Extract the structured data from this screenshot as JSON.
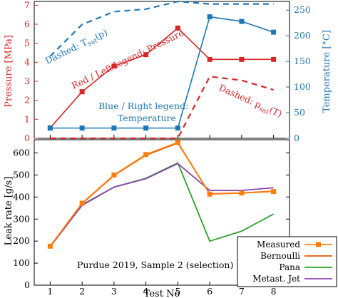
{
  "chart_data": [
    {
      "type": "line",
      "xlabel": "",
      "ylabel": "Pressure [MPa]",
      "y2label": "Temperature [°C]",
      "x": [
        1,
        2,
        3,
        4,
        5,
        6,
        7,
        8
      ],
      "xlim": [
        0.5,
        8.5
      ],
      "ylim": [
        0,
        7.2
      ],
      "y2lim": [
        0,
        267
      ],
      "yticks": [
        0,
        1,
        2,
        3,
        4,
        5,
        6,
        7
      ],
      "y2ticks": [
        0,
        50,
        100,
        150,
        200,
        250
      ],
      "series": [
        {
          "axis": "left",
          "style": "solid-square",
          "color": "#d62728",
          "values": [
            0.55,
            2.45,
            3.8,
            4.4,
            5.8,
            4.15,
            4.15,
            4.15
          ]
        },
        {
          "axis": "left",
          "style": "dashed",
          "color": "#d62728",
          "values": [
            0.0,
            0.0,
            0.0,
            0.0,
            0.0,
            3.25,
            3.05,
            2.55
          ]
        },
        {
          "axis": "right",
          "style": "solid-square",
          "color": "#1f77b4",
          "values": [
            20,
            20,
            20,
            20,
            20,
            237,
            228,
            207
          ]
        },
        {
          "axis": "right",
          "style": "dashed",
          "color": "#1f77b4",
          "values": [
            160,
            222,
            247,
            252,
            270,
            262,
            262,
            262
          ]
        }
      ],
      "annotations": {
        "red_left": "Red / Left legend: Pressure",
        "blue_right_1": "Blue / Right legend:",
        "blue_right_2": "Temperature",
        "dashed_tsat": "Dashed: T",
        "tsat_sub": "sat",
        "tsat_arg": "(p)",
        "dashed_psat": "Dashed: p",
        "psat_sub": "sat",
        "psat_arg": "(T)"
      },
      "grid": false
    },
    {
      "type": "line",
      "xlabel": "Test No",
      "ylabel": "Leak rate [g/s]",
      "x": [
        1,
        2,
        3,
        4,
        5,
        6,
        7,
        8
      ],
      "xlim": [
        0.5,
        8.5
      ],
      "ylim": [
        0,
        660
      ],
      "yticks": [
        0,
        100,
        200,
        300,
        400,
        500,
        600
      ],
      "xticks": [
        1,
        2,
        3,
        4,
        5,
        6,
        7,
        8
      ],
      "series": [
        {
          "name": "Measured",
          "color": "#ff7f0e",
          "marker": "square",
          "values": [
            177,
            372,
            500,
            593,
            648,
            413,
            418,
            425
          ]
        },
        {
          "name": "Bernoulli",
          "color": "#e05a00",
          "marker": "none",
          "values": [
            175,
            370,
            498,
            590,
            645,
            415,
            418,
            427
          ]
        },
        {
          "name": "Pana",
          "color": "#2ca02c",
          "marker": "none",
          "values": [
            175,
            365,
            445,
            485,
            555,
            200,
            245,
            323
          ]
        },
        {
          "name": "Metast. Jet",
          "color": "#8e44ad",
          "marker": "none",
          "values": [
            175,
            362,
            445,
            483,
            552,
            430,
            430,
            442
          ]
        }
      ],
      "annotation": "Purdue 2019, Sample 2 (selection)",
      "legend_position": "bottom-right",
      "grid": false
    }
  ]
}
